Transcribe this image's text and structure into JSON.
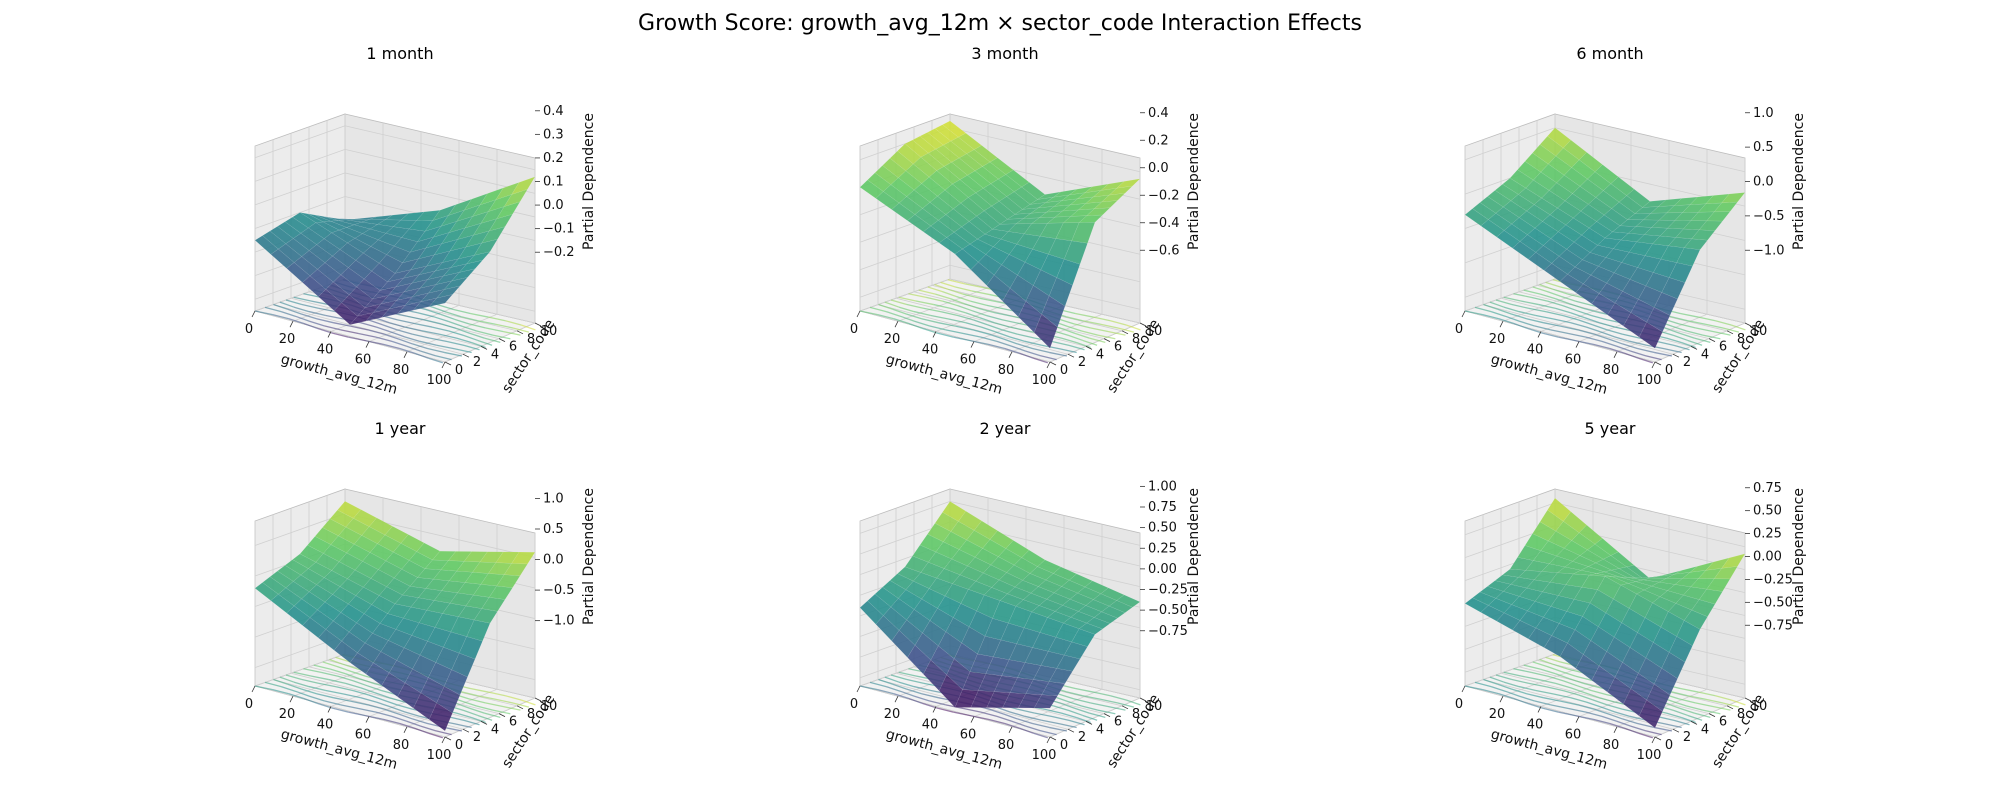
{
  "chart_data": {
    "type": "surface3d",
    "title": "Growth Score: growth_avg_12m × sector_code Interaction Effects",
    "shared": {
      "xlabel": "growth_avg_12m",
      "ylabel": "sector_code",
      "zlabel": "Partial Dependence",
      "xlim": [
        0,
        100
      ],
      "ylim": [
        0,
        10
      ],
      "xticks": [
        "0",
        "20",
        "40",
        "60",
        "80",
        "100"
      ],
      "yticks": [
        "0",
        "2",
        "4",
        "6",
        "8",
        "10"
      ],
      "colormap": "viridis",
      "grid": true,
      "contour_projection": "floor"
    },
    "panels": [
      {
        "title": "1 month",
        "zlim": [
          -0.25,
          0.45
        ],
        "zticks": [
          "−0.2",
          "−0.1",
          "0.0",
          "0.1",
          "0.2",
          "0.3",
          "0.4"
        ],
        "zvals": [
          -0.2,
          -0.1,
          0.0,
          0.1,
          0.2,
          0.3,
          0.4
        ],
        "x": [
          0,
          50,
          100
        ],
        "y": [
          0,
          5,
          10
        ],
        "z": [
          [
            0.05,
            -0.2,
            0.0
          ],
          [
            0.1,
            -0.05,
            0.15
          ],
          [
            0.0,
            0.15,
            0.4
          ]
        ]
      },
      {
        "title": "3 month",
        "zlim": [
          -0.7,
          0.5
        ],
        "zticks": [
          "−0.6",
          "−0.4",
          "−0.2",
          "0.0",
          "0.2",
          "0.4"
        ],
        "zvals": [
          -0.6,
          -0.4,
          -0.2,
          0.0,
          0.2,
          0.4
        ],
        "x": [
          0,
          50,
          100
        ],
        "y": [
          0,
          5,
          10
        ],
        "z": [
          [
            0.2,
            -0.1,
            -0.6
          ],
          [
            0.4,
            0.0,
            0.2
          ],
          [
            0.45,
            0.1,
            0.4
          ]
        ]
      },
      {
        "title": "6 month",
        "zlim": [
          -1.2,
          1.2
        ],
        "zticks": [
          "−1.0",
          "−0.5",
          "0.0",
          "0.5",
          "1.0"
        ],
        "zvals": [
          -1.0,
          -0.5,
          0.0,
          0.5,
          1.0
        ],
        "x": [
          0,
          50,
          100
        ],
        "y": [
          0,
          5,
          10
        ],
        "z": [
          [
            0.2,
            -0.4,
            -1.0
          ],
          [
            0.5,
            0.0,
            0.2
          ],
          [
            1.0,
            0.3,
            0.8
          ]
        ]
      },
      {
        "title": "1 year",
        "zlim": [
          -1.3,
          1.4
        ],
        "zticks": [
          "−1.0",
          "−0.5",
          "0.0",
          "0.5",
          "1.0"
        ],
        "zvals": [
          -1.0,
          -0.5,
          0.0,
          0.5,
          1.0
        ],
        "x": [
          0,
          50,
          100
        ],
        "y": [
          0,
          5,
          10
        ],
        "z": [
          [
            0.3,
            -0.5,
            -1.2
          ],
          [
            0.6,
            0.2,
            0.3
          ],
          [
            1.2,
            0.8,
            1.2
          ]
        ]
      },
      {
        "title": "2 year",
        "zlim": [
          -0.85,
          1.15
        ],
        "zticks": [
          "−0.75",
          "−0.50",
          "−0.25",
          "0.00",
          "0.25",
          "0.50",
          "0.75",
          "1.00"
        ],
        "zvals": [
          -0.75,
          -0.5,
          -0.25,
          0.0,
          0.25,
          0.5,
          0.75,
          1.0
        ],
        "x": [
          0,
          50,
          100
        ],
        "y": [
          0,
          5,
          10
        ],
        "z": [
          [
            0.1,
            -0.8,
            -0.5
          ],
          [
            0.4,
            0.3,
            0.2
          ],
          [
            1.0,
            0.6,
            0.4
          ]
        ]
      },
      {
        "title": "5 year",
        "zlim": [
          -0.9,
          0.9
        ],
        "zticks": [
          "−0.75",
          "−0.50",
          "−0.25",
          "0.00",
          "0.25",
          "0.50",
          "0.75"
        ],
        "zvals": [
          -0.75,
          -0.5,
          -0.25,
          0.0,
          0.25,
          0.5,
          0.75
        ],
        "x": [
          0,
          50,
          100
        ],
        "y": [
          0,
          5,
          10
        ],
        "z": [
          [
            0.0,
            -0.3,
            -0.8
          ],
          [
            0.2,
            0.4,
            0.1
          ],
          [
            0.8,
            0.2,
            0.75
          ]
        ]
      }
    ]
  }
}
